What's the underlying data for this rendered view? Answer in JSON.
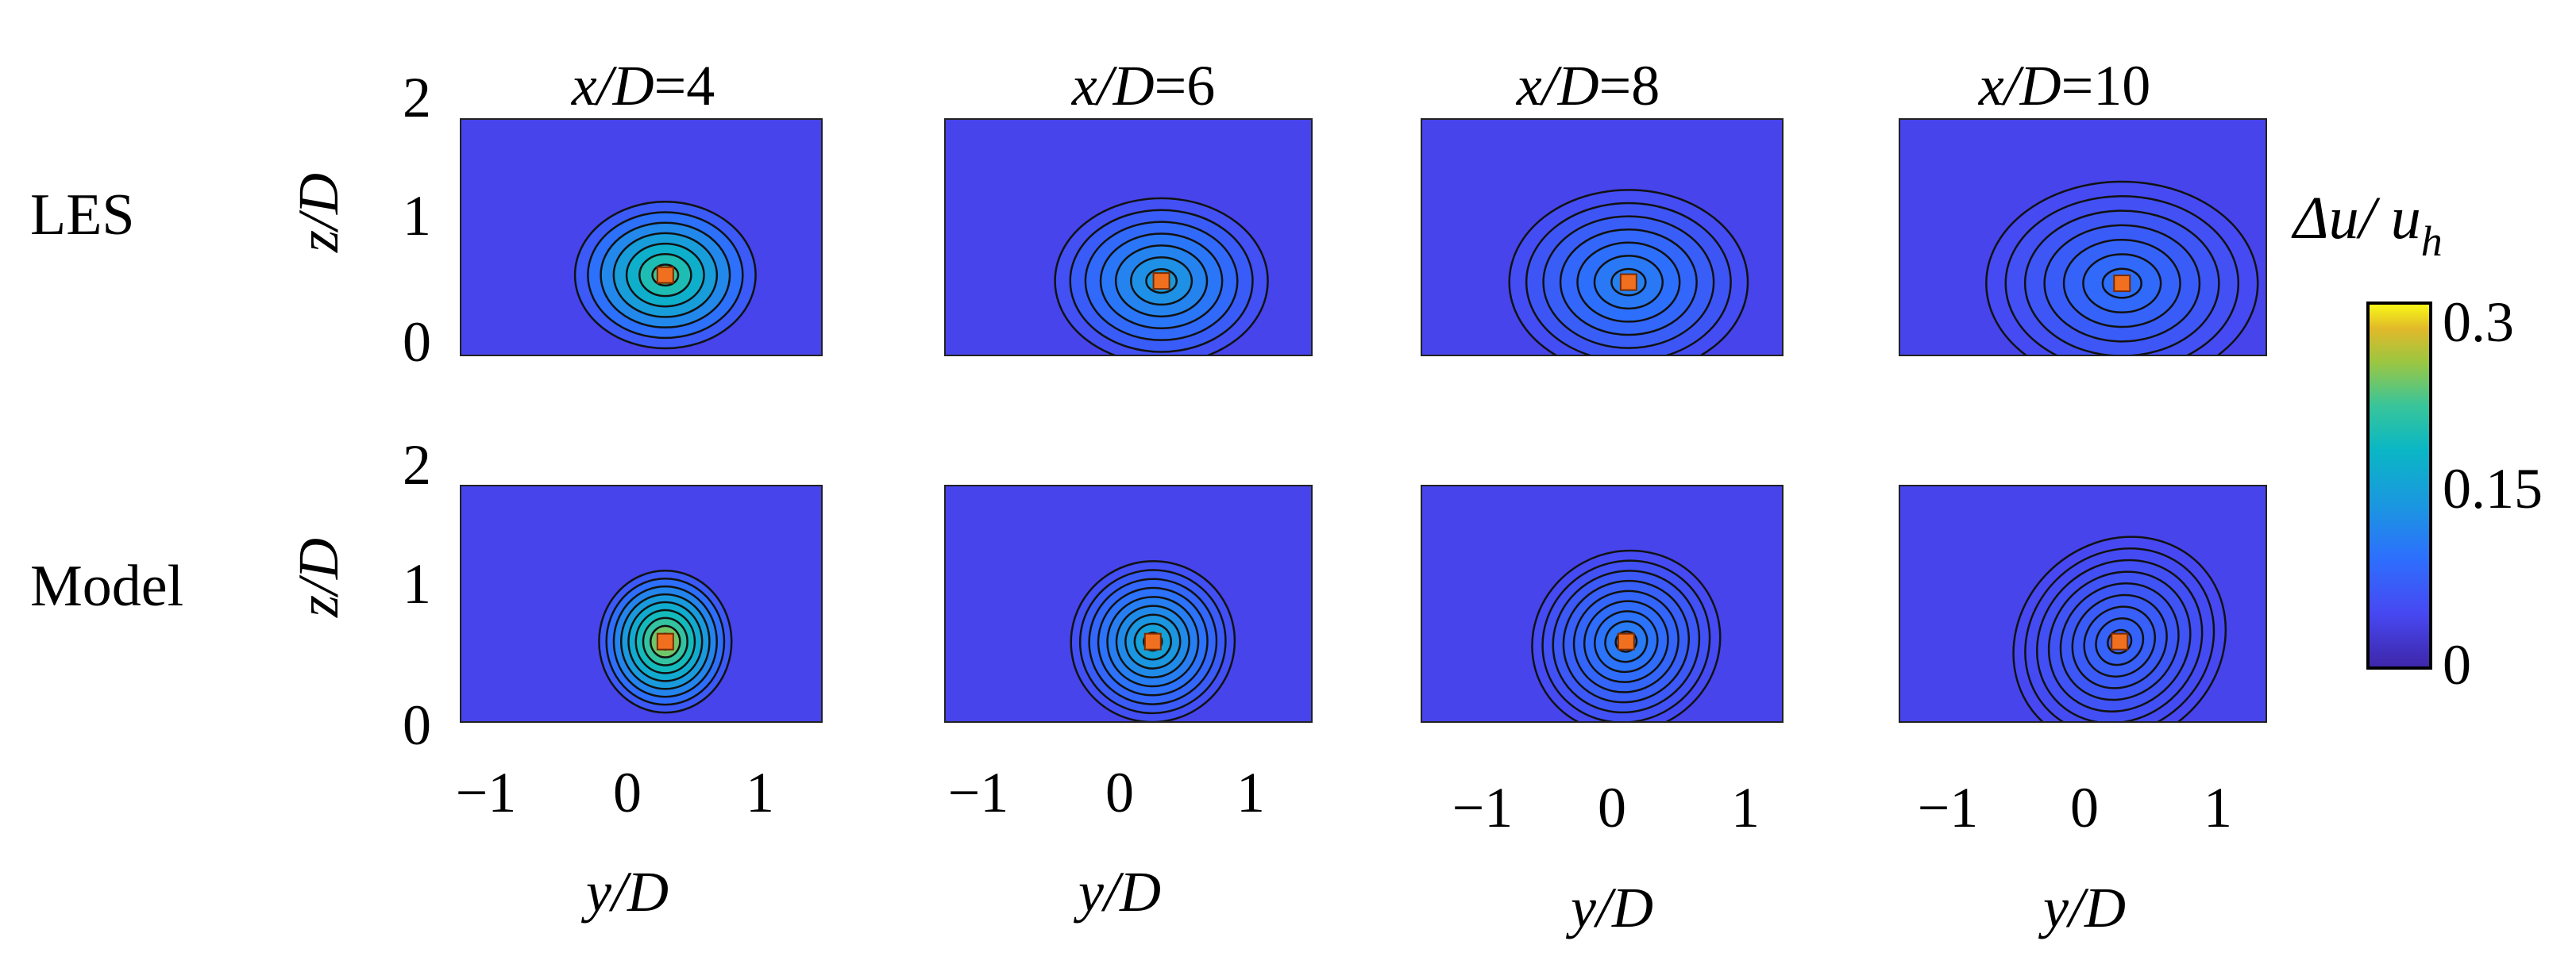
{
  "chart_data": {
    "type": "heatmap",
    "description_panels": "2 rows x 4 columns of contour plots of wake velocity deficit",
    "rows": [
      "LES",
      "Model"
    ],
    "columns": [
      {
        "title_var": "x/D",
        "title_eq": "=4",
        "x_over_D": 4
      },
      {
        "title_var": "x/D",
        "title_eq": "=6",
        "x_over_D": 6
      },
      {
        "title_var": "x/D",
        "title_eq": "=8",
        "x_over_D": 8
      },
      {
        "title_var": "x/D",
        "title_eq": "=10",
        "x_over_D": 10
      }
    ],
    "xlabel": "y/D",
    "ylabel": "z/D",
    "xlim": [
      -1.5,
      1.5
    ],
    "ylim": [
      0,
      2
    ],
    "xticks": [
      -1,
      0,
      1
    ],
    "xtick_labels": [
      "−1",
      "0",
      "1"
    ],
    "yticks": [
      0,
      1,
      2
    ],
    "ytick_labels": [
      "0",
      "1",
      "2"
    ],
    "colorbar": {
      "label": "Δu/ u",
      "label_sub": "h",
      "min": 0,
      "max": 0.3,
      "ticks": [
        0,
        0.15,
        0.3
      ],
      "tick_labels": [
        "0",
        "0.15",
        "0.3"
      ],
      "colormap": "parula"
    },
    "wake_centers": [
      {
        "row": "LES",
        "x_over_D": 4,
        "y": 0.2,
        "z": 0.68,
        "peak": 0.22
      },
      {
        "row": "LES",
        "x_over_D": 6,
        "y": 0.27,
        "z": 0.63,
        "peak": 0.14
      },
      {
        "row": "LES",
        "x_over_D": 8,
        "y": 0.22,
        "z": 0.62,
        "peak": 0.11
      },
      {
        "row": "LES",
        "x_over_D": 10,
        "y": 0.32,
        "z": 0.61,
        "peak": 0.09
      },
      {
        "row": "Model",
        "x_over_D": 4,
        "y": 0.2,
        "z": 0.68,
        "peak": 0.26
      },
      {
        "row": "Model",
        "x_over_D": 6,
        "y": 0.2,
        "z": 0.68,
        "peak": 0.16
      },
      {
        "row": "Model",
        "x_over_D": 8,
        "y": 0.2,
        "z": 0.68,
        "peak": 0.11
      },
      {
        "row": "Model",
        "x_over_D": 10,
        "y": 0.3,
        "z": 0.68,
        "peak": 0.08
      }
    ],
    "marker_color": "#f07020",
    "background_color": "#3d3d9e",
    "grid": false
  }
}
